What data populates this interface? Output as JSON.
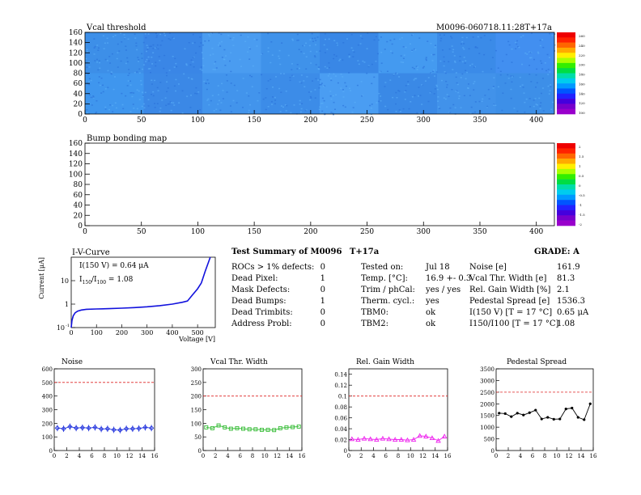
{
  "header": {
    "left_title": "Vcal threshold",
    "right_title": "M0096-060718.11:28T+17a"
  },
  "heatmap": {
    "title": "Vcal threshold",
    "x_ticks": [
      "0",
      "50",
      "100",
      "150",
      "200",
      "250",
      "300",
      "350",
      "400"
    ],
    "y_ticks": [
      "0",
      "20",
      "40",
      "60",
      "80",
      "100",
      "120",
      "140",
      "160"
    ],
    "xlim": [
      0,
      416
    ],
    "ylim": [
      0,
      160
    ],
    "colorbar_labels": [
      "260",
      "240",
      "220",
      "200",
      "180",
      "160",
      "140",
      "120",
      "100"
    ]
  },
  "bump_map": {
    "title": "Bump bonding map",
    "x_ticks": [
      "0",
      "50",
      "100",
      "150",
      "200",
      "250",
      "300",
      "350",
      "400"
    ],
    "y_ticks": [
      "0",
      "20",
      "40",
      "60",
      "80",
      "100",
      "120",
      "140",
      "160"
    ],
    "xlim": [
      0,
      416
    ],
    "ylim": [
      0,
      160
    ],
    "colorbar_labels": [
      "2",
      "1.5",
      "1",
      "0.5",
      "0",
      "-0.5",
      "-1",
      "-1.5",
      "-2"
    ]
  },
  "iv_curve": {
    "title": "I-V-Curve",
    "ylabel": "Current [μA]",
    "xlabel": "Voltage [V]",
    "annotation_current": "I(150 V) = 0.64 μA",
    "annotation_ratio_prefix": "I",
    "annotation_ratio_sub1": "150",
    "annotation_ratio_mid": "/I",
    "annotation_ratio_sub2": "100",
    "annotation_ratio_value": " = 1.08",
    "x_ticks": [
      "0",
      "100",
      "200",
      "300",
      "400",
      "500"
    ],
    "y_ticks": [
      "10",
      "1",
      "10"
    ],
    "y_tick_exp": "-1",
    "xlim": [
      0,
      570
    ],
    "ylim_log": [
      0.1,
      100
    ],
    "points": [
      [
        0,
        0.1
      ],
      [
        3,
        0.2
      ],
      [
        8,
        0.32
      ],
      [
        15,
        0.42
      ],
      [
        25,
        0.5
      ],
      [
        40,
        0.56
      ],
      [
        60,
        0.6
      ],
      [
        100,
        0.62
      ],
      [
        150,
        0.64
      ],
      [
        200,
        0.67
      ],
      [
        250,
        0.71
      ],
      [
        300,
        0.77
      ],
      [
        350,
        0.86
      ],
      [
        400,
        1.0
      ],
      [
        440,
        1.2
      ],
      [
        460,
        1.35
      ],
      [
        480,
        2.5
      ],
      [
        500,
        4.5
      ],
      [
        515,
        8
      ],
      [
        530,
        25
      ],
      [
        545,
        70
      ],
      [
        550,
        100
      ]
    ]
  },
  "summary": {
    "title_prefix": "Test Summary of M0096",
    "title_suffix": "T+17a",
    "grade": "GRADE:  A",
    "defects": [
      {
        "label": "ROCs > 1% defects:",
        "value": "0"
      },
      {
        "label": "Dead Pixel:",
        "value": "1"
      },
      {
        "label": "Mask Defects:",
        "value": "0"
      },
      {
        "label": "Dead Bumps:",
        "value": "1"
      },
      {
        "label": "Dead Trimbits:",
        "value": "0"
      },
      {
        "label": "Address Probl:",
        "value": "0"
      }
    ],
    "tests": [
      {
        "label": "Tested on:",
        "value": "Jul 18"
      },
      {
        "label": "Temp. [°C]:",
        "value": "16.9 +- 0.3"
      },
      {
        "label": "Trim / phCal:",
        "value": "yes / yes"
      },
      {
        "label": "Therm. cycl.:",
        "value": "yes"
      },
      {
        "label": "TBM0:",
        "value": "ok"
      },
      {
        "label": "TBM2:",
        "value": "ok"
      }
    ],
    "results": [
      {
        "label": "Noise [e]",
        "value": "161.9"
      },
      {
        "label": "Vcal Thr. Width [e]",
        "value": "81.3"
      },
      {
        "label": "Rel. Gain Width [%]",
        "value": "2.1"
      },
      {
        "label": "Pedestal Spread [e]",
        "value": "1536.3"
      },
      {
        "label": "I(150 V) [T = 17 °C]",
        "value": "0.65 μA"
      },
      {
        "label": "I150/I100 [T = 17 °C]",
        "value": "1.08"
      }
    ]
  },
  "chart_data": [
    {
      "type": "scatter",
      "title": "Noise",
      "x": [
        0,
        1,
        2,
        3,
        4,
        5,
        6,
        7,
        8,
        9,
        10,
        11,
        12,
        13,
        14,
        15
      ],
      "values": [
        165,
        160,
        175,
        165,
        168,
        165,
        170,
        158,
        160,
        152,
        150,
        160,
        160,
        162,
        170,
        165
      ],
      "ylim": [
        0,
        600
      ],
      "xlim": [
        0,
        16
      ],
      "y_ticks": [
        "0",
        "100",
        "200",
        "300",
        "400",
        "500",
        "600"
      ],
      "x_ticks": [
        "0",
        "2",
        "4",
        "6",
        "8",
        "10",
        "12",
        "14",
        "16"
      ],
      "threshold": 500,
      "color": "#2233dd"
    },
    {
      "type": "scatter",
      "title": "Vcal Thr. Width",
      "x": [
        0,
        1,
        2,
        3,
        4,
        5,
        6,
        7,
        8,
        9,
        10,
        11,
        12,
        13,
        14,
        15
      ],
      "values": [
        85,
        82,
        92,
        85,
        80,
        82,
        80,
        78,
        78,
        76,
        76,
        75,
        82,
        85,
        86,
        88
      ],
      "ylim": [
        0,
        300
      ],
      "xlim": [
        0,
        16
      ],
      "y_ticks": [
        "0",
        "50",
        "100",
        "150",
        "200",
        "250",
        "300"
      ],
      "x_ticks": [
        "0",
        "2",
        "4",
        "6",
        "8",
        "10",
        "12",
        "14",
        "16"
      ],
      "threshold": 200,
      "color": "#33bb33"
    },
    {
      "type": "scatter",
      "title": "Rel. Gain Width",
      "x": [
        0,
        1,
        2,
        3,
        4,
        5,
        6,
        7,
        8,
        9,
        10,
        11,
        12,
        13,
        14,
        15
      ],
      "values": [
        0.021,
        0.02,
        0.022,
        0.021,
        0.02,
        0.022,
        0.021,
        0.02,
        0.02,
        0.019,
        0.02,
        0.027,
        0.026,
        0.023,
        0.018,
        0.026
      ],
      "ylim": [
        0,
        0.15
      ],
      "xlim": [
        0,
        16
      ],
      "y_ticks": [
        "0",
        "0.02",
        "0.04",
        "0.06",
        "0.08",
        "0.1",
        "0.12",
        "0.14"
      ],
      "x_ticks": [
        "0",
        "2",
        "4",
        "6",
        "8",
        "10",
        "12",
        "14",
        "16"
      ],
      "threshold": 0.1,
      "color": "#ee22ee"
    },
    {
      "type": "line",
      "title": "Pedestal Spread",
      "x": [
        0,
        1,
        2,
        3,
        4,
        5,
        6,
        7,
        8,
        9,
        10,
        11,
        12,
        13,
        14,
        15
      ],
      "values": [
        1600,
        1580,
        1450,
        1600,
        1520,
        1620,
        1730,
        1350,
        1420,
        1340,
        1350,
        1780,
        1820,
        1420,
        1320,
        2000
      ],
      "ylim": [
        0,
        3500
      ],
      "xlim": [
        0,
        16
      ],
      "y_ticks": [
        "0",
        "500",
        "1000",
        "1500",
        "2000",
        "2500",
        "3000",
        "3500"
      ],
      "x_ticks": [
        "0",
        "2",
        "4",
        "6",
        "8",
        "10",
        "12",
        "14",
        "16"
      ],
      "threshold": 2500,
      "color": "#000000"
    }
  ]
}
